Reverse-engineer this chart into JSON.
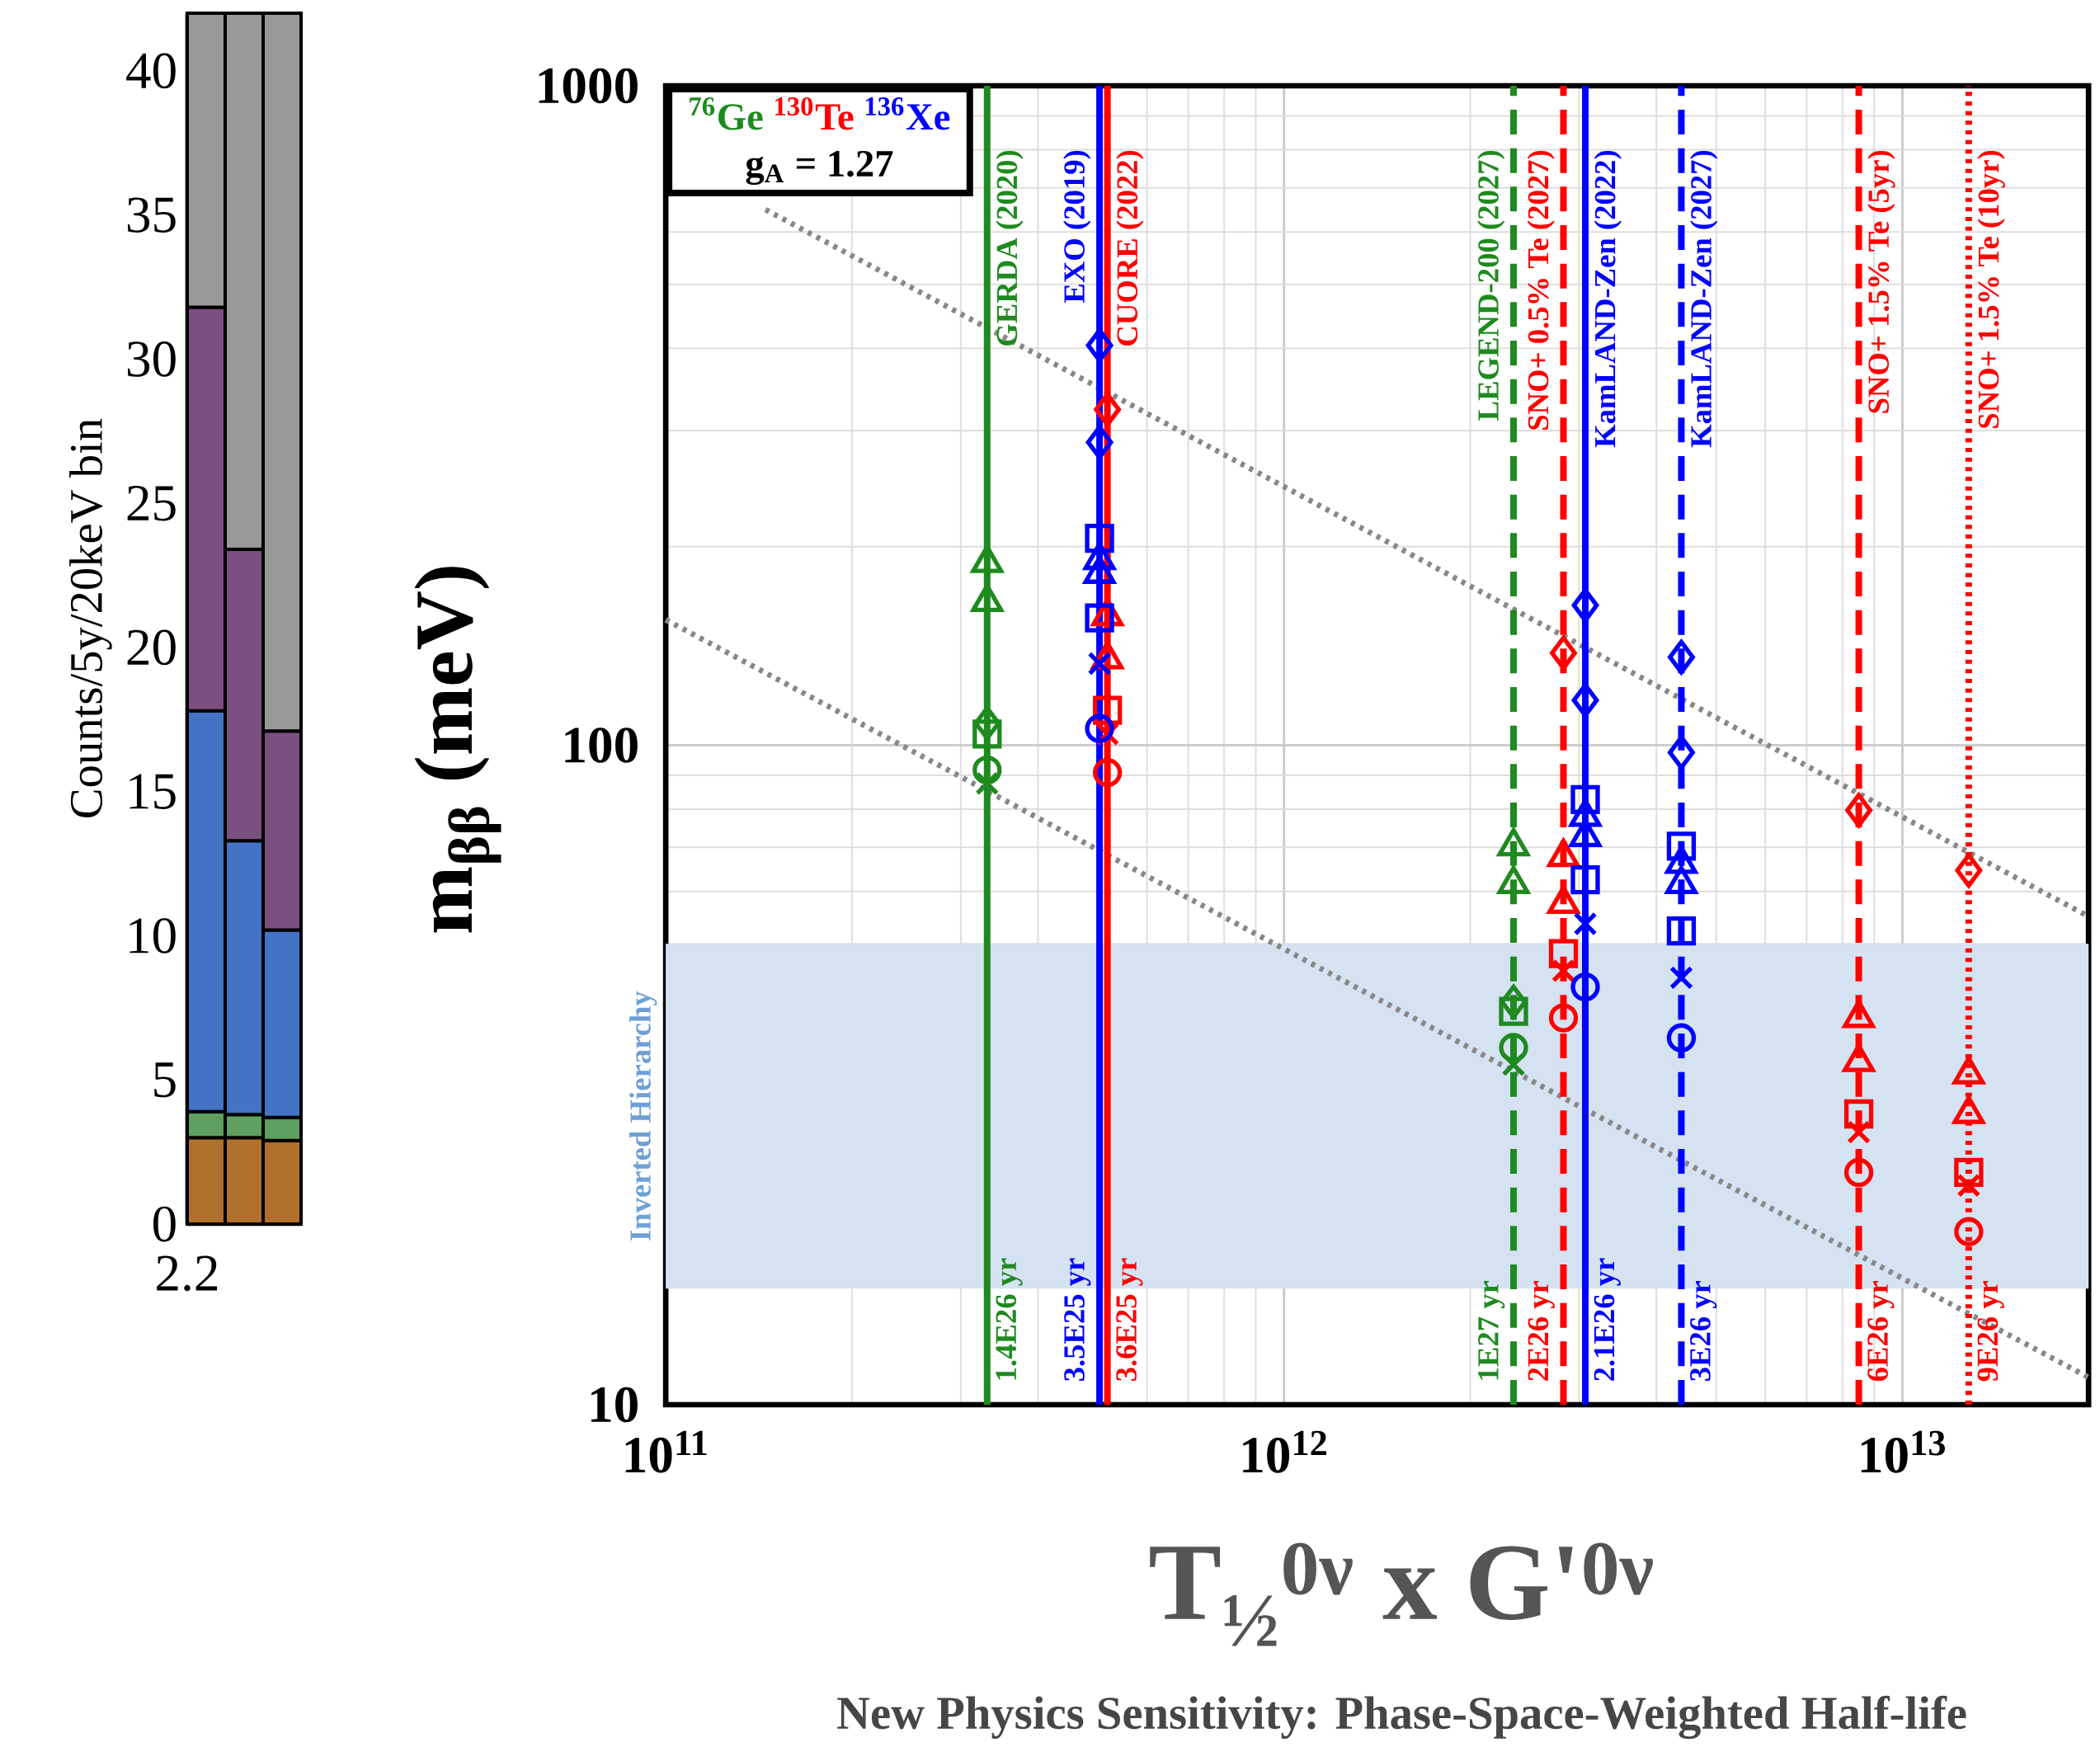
{
  "chart_data": [
    {
      "type": "bar",
      "ylabel": "Counts/5y/20keV bin",
      "categories": [
        null,
        null,
        null
      ],
      "stacked": true,
      "ylim": [
        0,
        42
      ],
      "yticks": [
        0,
        5,
        10,
        15,
        20,
        25,
        30,
        35,
        40
      ],
      "annotations": [
        "2.2"
      ],
      "series": [
        {
          "color": "#b0702e",
          "values": [
            3.0,
            3.0,
            2.9
          ]
        },
        {
          "color": "#5f9f5f",
          "values": [
            0.9,
            0.8,
            0.8
          ]
        },
        {
          "color": "#4472c4",
          "values": [
            13.9,
            9.5,
            6.5
          ]
        },
        {
          "color": "#7b4f80",
          "values": [
            14.0,
            10.1,
            6.9
          ]
        },
        {
          "color": "#999999",
          "values": [
            10.2,
            18.6,
            24.9
          ]
        }
      ]
    },
    {
      "type": "scatter",
      "subtitle": "New Physics Sensitivity: Phase-Space-Weighted Half-life",
      "xlabel": "T$_{½}$$^{0ν}$ x G'$^{0ν}$",
      "ylabel": "m$_{ββ}$ (meV)",
      "log": "xy",
      "grid": true,
      "xlim": [
        100000000000.0,
        20000000000000.0
      ],
      "ylim": [
        10,
        1000
      ],
      "xticks": [
        {
          "value": 100000000000.0,
          "label": "10$^{11}$"
        },
        {
          "value": 1000000000000.0,
          "label": "10$^{12}$"
        },
        {
          "value": 10000000000000.0,
          "label": "10$^{13}$"
        }
      ],
      "yticks": [
        10,
        100,
        1000
      ],
      "annotations": [
        "$^{76}$Ge",
        "$^{130}$Te",
        "$^{136}$Xe",
        "g$_{A}$ = 1.27",
        {
          "text": "1.4E26 yr",
          "x": 331000000000.0,
          "y": 10.5
        },
        {
          "text": "3.5E25 yr",
          "x": 503000000000.0,
          "y": 10.5
        },
        {
          "text": "3.6E25 yr",
          "x": 518000000000.0,
          "y": 10.5
        },
        {
          "text": "1E27 yr",
          "x": 2350000000000.0,
          "y": 10.5
        },
        {
          "text": "2E26 yr",
          "x": 2830000000000.0,
          "y": 10.5
        },
        {
          "text": "2.1E26 yr",
          "x": 3070000000000.0,
          "y": 10.5
        },
        {
          "text": "3E26 yr",
          "x": 4390000000000.0,
          "y": 10.5
        },
        {
          "text": "6E26 yr",
          "x": 8500000000000.0,
          "y": 10.5
        },
        {
          "text": "9E26 yr",
          "x": 12800000000000.0,
          "y": 10.5
        }
      ],
      "bands": [
        {
          "axis": "y",
          "from": 15,
          "to": 50,
          "label": "Inverted Hierarchy",
          "color": "#d5e2f2"
        }
      ],
      "ref_lines": [
        {
          "axis": "x",
          "value": 331000000000.0,
          "label": "GERDA (2020)",
          "color": "#1f8a1f",
          "line_style": "solid"
        },
        {
          "axis": "x",
          "value": 503000000000.0,
          "label": "EXO (2019)",
          "color": "#0000ff",
          "line_style": "solid"
        },
        {
          "axis": "x",
          "value": 518000000000.0,
          "label": "CUORE (2022)",
          "color": "#ff0000",
          "line_style": "solid"
        },
        {
          "axis": "x",
          "value": 2350000000000.0,
          "label": "LEGEND-200 (2027)",
          "color": "#1f8a1f",
          "line_style": "dashed"
        },
        {
          "axis": "x",
          "value": 2830000000000.0,
          "label": "SNO+ 0.5% Te (2027)",
          "color": "#ff0000",
          "line_style": "dashed"
        },
        {
          "axis": "x",
          "value": 3070000000000.0,
          "label": "KamLAND-Zen (2022)",
          "color": "#0000ff",
          "line_style": "solid"
        },
        {
          "axis": "x",
          "value": 4390000000000.0,
          "label": "KamLAND-Zen (2027)",
          "color": "#0000ff",
          "line_style": "dashed"
        },
        {
          "axis": "x",
          "value": 8500000000000.0,
          "label": "SNO+ 1.5% Te (5yr)",
          "color": "#ff0000",
          "line_style": "dashed"
        },
        {
          "axis": "x",
          "value": 12800000000000.0,
          "label": "SNO+ 1.5% Te (10yr)",
          "color": "#ff0000",
          "line_style": "dotted"
        }
      ],
      "series": [
        {
          "type": "line",
          "color": "#888888",
          "line_style": "dotted",
          "marker": "none",
          "x": [
            145000000000.0,
            20000000000000.0
          ],
          "values": [
            649,
            55
          ]
        },
        {
          "type": "line",
          "color": "#888888",
          "line_style": "dotted",
          "marker": "none",
          "x": [
            100000000000.0,
            20000000000000.0
          ],
          "values": [
            155,
            11
          ]
        },
        {
          "color": "#1f8a1f",
          "marker": "triangle",
          "x": [
            331000000000.0,
            2350000000000.0
          ],
          "values": [
            189,
            70.3
          ]
        },
        {
          "color": "#1f8a1f",
          "marker": "triangle",
          "x": [
            331000000000.0,
            2350000000000.0
          ],
          "values": [
            165,
            61.6
          ]
        },
        {
          "color": "#1f8a1f",
          "marker": "diamond",
          "x": [
            331000000000.0,
            2350000000000.0
          ],
          "values": [
            108,
            40.8
          ]
        },
        {
          "color": "#1f8a1f",
          "marker": "square",
          "x": [
            331000000000.0,
            2350000000000.0
          ],
          "values": [
            104,
            39.5
          ]
        },
        {
          "color": "#1f8a1f",
          "marker": "circle",
          "x": [
            331000000000.0,
            2350000000000.0
          ],
          "values": [
            91.7,
            34.8
          ]
        },
        {
          "color": "#1f8a1f",
          "marker": "cross",
          "x": [
            331000000000.0,
            2350000000000.0
          ],
          "values": [
            87.5,
            32.8
          ]
        },
        {
          "color": "#ff0000",
          "marker": "diamond",
          "x": [
            518000000000.0,
            2830000000000.0,
            8500000000000.0,
            12800000000000.0
          ],
          "values": [
            323,
            138,
            79.7,
            64.6
          ]
        },
        {
          "color": "#ff0000",
          "marker": "triangle",
          "x": [
            518000000000.0,
            2830000000000.0,
            8500000000000.0,
            12800000000000.0
          ],
          "values": [
            157,
            67.7,
            38.6,
            31.7
          ]
        },
        {
          "color": "#ff0000",
          "marker": "triangle",
          "x": [
            518000000000.0,
            2830000000000.0,
            8500000000000.0,
            12800000000000.0
          ],
          "values": [
            135,
            57.5,
            33.1,
            27.6
          ]
        },
        {
          "color": "#ff0000",
          "marker": "square",
          "x": [
            518000000000.0,
            2830000000000.0,
            8500000000000.0,
            12800000000000.0
          ],
          "values": [
            113,
            48.3,
            27.6,
            22.5
          ]
        },
        {
          "color": "#ff0000",
          "marker": "cross",
          "x": [
            518000000000.0,
            2830000000000.0,
            8500000000000.0,
            12800000000000.0
          ],
          "values": [
            104,
            45.5,
            25.9,
            21.5
          ]
        },
        {
          "color": "#ff0000",
          "marker": "circle",
          "x": [
            518000000000.0,
            2830000000000.0,
            8500000000000.0,
            12800000000000.0
          ],
          "values": [
            90.9,
            38.6,
            22.5,
            18.3
          ]
        },
        {
          "color": "#0000ff",
          "marker": "diamond",
          "x": [
            503000000000.0,
            3070000000000.0,
            4390000000000.0
          ],
          "values": [
            404,
            163,
            136
          ]
        },
        {
          "color": "#0000ff",
          "marker": "diamond",
          "x": [
            503000000000.0,
            3070000000000.0,
            4390000000000.0
          ],
          "values": [
            288,
            117,
            97.5
          ]
        },
        {
          "color": "#0000ff",
          "marker": "square",
          "x": [
            503000000000.0,
            3070000000000.0,
            4390000000000.0
          ],
          "values": [
            206,
            82.7,
            70.3
          ]
        },
        {
          "color": "#0000ff",
          "marker": "triangle",
          "x": [
            503000000000.0,
            3070000000000.0,
            4390000000000.0
          ],
          "values": [
            191,
            77.9,
            66.1
          ]
        },
        {
          "color": "#0000ff",
          "marker": "triangle",
          "x": [
            503000000000.0,
            3070000000000.0,
            4390000000000.0
          ],
          "values": [
            182,
            72.6,
            61.6
          ]
        },
        {
          "color": "#0000ff",
          "marker": "square",
          "x": [
            503000000000.0,
            3070000000000.0,
            4390000000000.0
          ],
          "values": [
            156,
            62.5,
            52.3
          ]
        },
        {
          "color": "#0000ff",
          "marker": "cross",
          "x": [
            503000000000.0,
            3070000000000.0,
            4390000000000.0
          ],
          "values": [
            133,
            53.6,
            44.4
          ]
        },
        {
          "color": "#0000ff",
          "marker": "circle",
          "x": [
            503000000000.0,
            3070000000000.0,
            4390000000000.0
          ],
          "values": [
            106,
            43.0,
            36.0
          ]
        }
      ]
    }
  ]
}
